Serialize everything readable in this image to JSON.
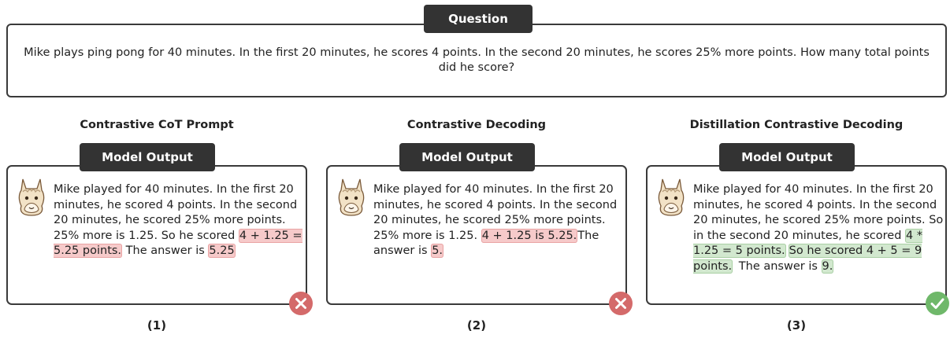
{
  "question": {
    "label": "Question",
    "text": "Mike plays ping pong for 40 minutes.  In the first 20 minutes, he scores 4 points.  In the second 20 minutes, he scores 25% more points.  How many total points did he score?"
  },
  "panels": [
    {
      "title": "Contrastive CoT Prompt",
      "label": "Model Output",
      "result": "wrong",
      "caption": "(1)",
      "segments": [
        {
          "text": "Mike played for 40 minutes. In the first 20 minutes, he scored 4 points. In the second 20 minutes, he scored 25% more points. 25% more is 1.25. So he scored ",
          "highlight": "none"
        },
        {
          "text": "4 + 1.25 = 5.25 points.",
          "highlight": "wrong"
        },
        {
          "text": " The answer is ",
          "highlight": "none"
        },
        {
          "text": "5.25",
          "highlight": "wrong"
        }
      ]
    },
    {
      "title": "Contrastive Decoding",
      "label": "Model Output",
      "result": "wrong",
      "caption": "(2)",
      "segments": [
        {
          "text": "Mike played for 40 minutes. In the first 20 minutes, he scored 4 points. In the second 20 minutes, he scored 25% more points. 25% more is 1.25. ",
          "highlight": "none"
        },
        {
          "text": "4 + 1.25 is 5.25.",
          "highlight": "wrong"
        },
        {
          "text": "The answer is ",
          "highlight": "none"
        },
        {
          "text": "5.",
          "highlight": "wrong"
        }
      ]
    },
    {
      "title": "Distillation Contrastive Decoding",
      "label": "Model Output",
      "result": "right",
      "caption": "(3)",
      "segments": [
        {
          "text": "Mike played for 40 minutes. In the first 20 minutes, he scored 4 points. In the second 20 minutes, he scored 25% more points. So in the second 20 minutes, he scored ",
          "highlight": "none"
        },
        {
          "text": "4 * 1.25 = 5 points.",
          "highlight": "right"
        },
        {
          "text": "So he scored 4 + 5 = 9 points.",
          "highlight": "right"
        },
        {
          "text": " The answer is ",
          "highlight": "none"
        },
        {
          "text": "9.",
          "highlight": "right"
        }
      ]
    }
  ]
}
